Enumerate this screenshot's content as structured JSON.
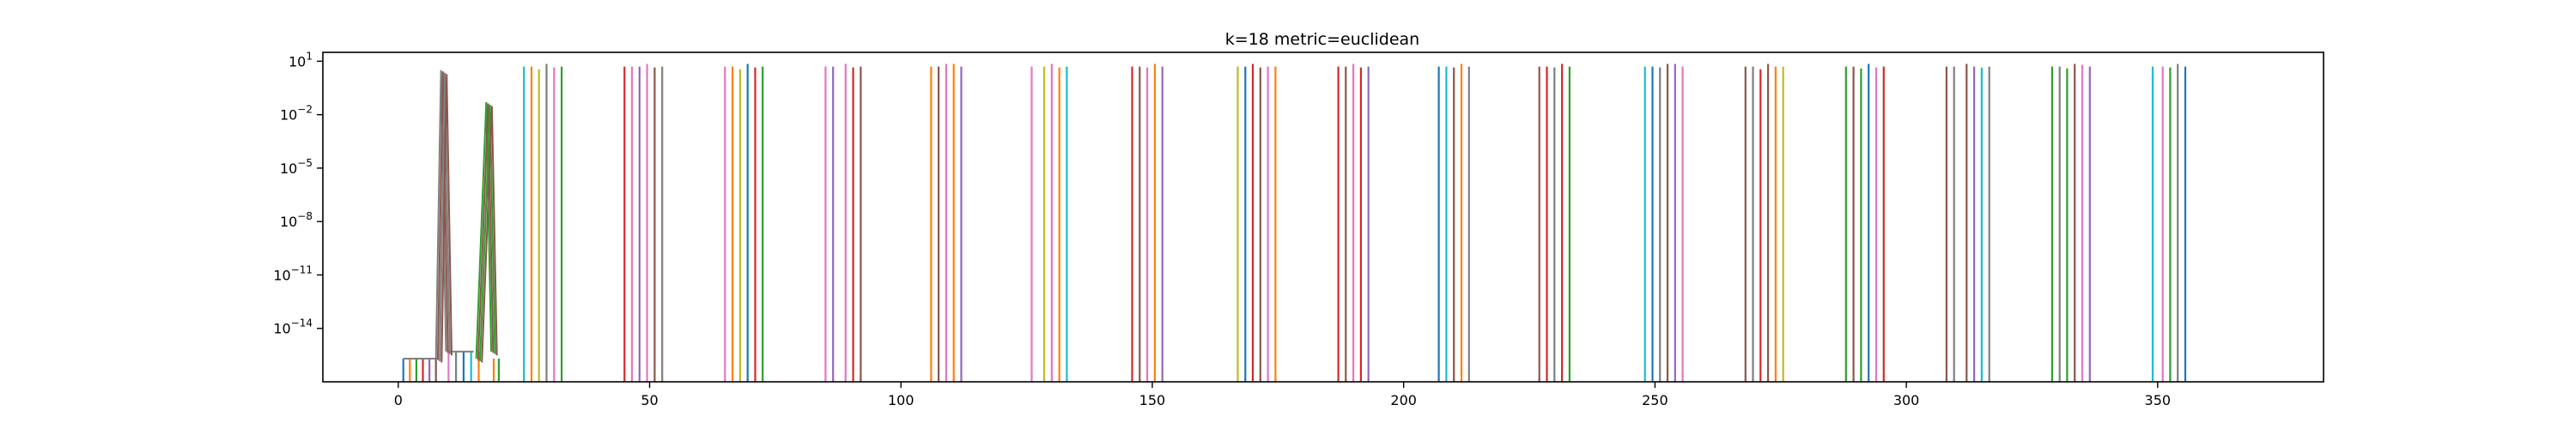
{
  "chart_data": {
    "type": "line",
    "title": "k=18 metric=euclidean",
    "xlabel": "",
    "ylabel": "",
    "xlim": [
      -15,
      383
    ],
    "ylim_log10": [
      -17,
      1.5
    ],
    "yscale": "log",
    "grid": false,
    "legend": "none",
    "x_ticks": [
      0,
      50,
      100,
      150,
      200,
      250,
      300,
      350
    ],
    "x_tick_labels": [
      "0",
      "50",
      "100",
      "150",
      "200",
      "250",
      "300",
      "350"
    ],
    "y_ticks_log10": [
      1,
      -2,
      -5,
      -8,
      -11,
      -14
    ],
    "y_tick_labels": [
      "10^1",
      "10^-2",
      "10^-5",
      "10^-8",
      "10^-11",
      "10^-14"
    ],
    "palette": [
      "#1f77b4",
      "#ff7f0e",
      "#2ca02c",
      "#d62728",
      "#9467bd",
      "#8c564b",
      "#e377c2",
      "#7f7f7f",
      "#bcbd22",
      "#17becf"
    ],
    "floor_log10": -17,
    "low_plateau": {
      "x_start": 1,
      "x_end": 8,
      "log10": -15.7
    },
    "mid_plateau": {
      "x_start": 10,
      "x_end": 15,
      "log10": -15.3
    },
    "peaks": [
      {
        "x_start": 7.5,
        "x_peak": 8.5,
        "x_end": 9.5,
        "log10": 0.5,
        "color": "#7f7f7f"
      },
      {
        "x_start": 15.5,
        "x_peak": 17.5,
        "x_end": 18.5,
        "log10": -1.3,
        "color": "#2ca02c"
      }
    ],
    "spike_groups": [
      {
        "x": [
          1,
          2.3,
          3.6,
          4.9,
          6.2,
          7.5
        ],
        "log10": [
          -15.7,
          -15.7,
          -15.7,
          -15.7,
          -15.7,
          -15.7
        ],
        "colors": [
          "#1f77b4",
          "#ff7f0e",
          "#2ca02c",
          "#d62728",
          "#9467bd",
          "#8c564b"
        ]
      },
      {
        "x": [
          10,
          11.5,
          13,
          14.5,
          16
        ],
        "log10": [
          -15.3,
          -15.3,
          -15.3,
          -15.3,
          -15.3
        ],
        "colors": [
          "#e377c2",
          "#7f7f7f",
          "#1f77b4",
          "#17becf",
          "#ff7f0e"
        ]
      },
      {
        "x": [
          19,
          20
        ],
        "log10": [
          -15.7,
          -15.7
        ],
        "colors": [
          "#ff7f0e",
          "#2ca02c"
        ]
      },
      {
        "x": [
          25,
          26.5,
          28,
          29.5,
          31,
          32.5
        ],
        "log10": [
          0.7,
          0.7,
          0.55,
          0.85,
          0.65,
          0.7
        ],
        "colors": [
          "#17becf",
          "#ff7f0e",
          "#bcbd22",
          "#7f7f7f",
          "#e377c2",
          "#2ca02c"
        ]
      },
      {
        "x": [
          45,
          46.5,
          48,
          49.5,
          51,
          52.5
        ],
        "log10": [
          0.7,
          0.7,
          0.7,
          0.85,
          0.65,
          0.7
        ],
        "colors": [
          "#d62728",
          "#e377c2",
          "#9467bd",
          "#e377c2",
          "#8c564b",
          "#7f7f7f"
        ]
      },
      {
        "x": [
          65,
          66.5,
          68,
          69.5,
          71,
          72.5
        ],
        "log10": [
          0.7,
          0.7,
          0.55,
          0.85,
          0.65,
          0.7
        ],
        "colors": [
          "#e377c2",
          "#ff7f0e",
          "#bcbd22",
          "#1f77b4",
          "#d62728",
          "#2ca02c"
        ]
      },
      {
        "x": [
          85,
          86.5,
          89,
          90.5,
          92
        ],
        "log10": [
          0.7,
          0.7,
          0.85,
          0.65,
          0.7
        ],
        "colors": [
          "#e377c2",
          "#9467bd",
          "#e377c2",
          "#d62728",
          "#8c564b"
        ]
      },
      {
        "x": [
          106,
          107.5,
          109,
          110.5,
          112
        ],
        "log10": [
          0.7,
          0.7,
          0.85,
          0.85,
          0.7
        ],
        "colors": [
          "#ff7f0e",
          "#8c564b",
          "#e377c2",
          "#ff7f0e",
          "#9467bd"
        ]
      },
      {
        "x": [
          126,
          128.5,
          130,
          131.5,
          133
        ],
        "log10": [
          0.7,
          0.7,
          0.85,
          0.65,
          0.7
        ],
        "colors": [
          "#e377c2",
          "#bcbd22",
          "#e377c2",
          "#ff7f0e",
          "#17becf"
        ]
      },
      {
        "x": [
          146,
          147.5,
          149,
          150.5,
          152
        ],
        "log10": [
          0.7,
          0.7,
          0.65,
          0.85,
          0.7
        ],
        "colors": [
          "#d62728",
          "#8c564b",
          "#e377c2",
          "#ff7f0e",
          "#9467bd"
        ]
      },
      {
        "x": [
          167,
          168.5,
          170,
          171.5,
          173,
          174.5
        ],
        "log10": [
          0.7,
          0.7,
          0.85,
          0.65,
          0.7,
          0.7
        ],
        "colors": [
          "#bcbd22",
          "#1f77b4",
          "#d62728",
          "#8c564b",
          "#e377c2",
          "#ff7f0e"
        ]
      },
      {
        "x": [
          187,
          188.5,
          190,
          191.5,
          193
        ],
        "log10": [
          0.7,
          0.7,
          0.85,
          0.65,
          0.7
        ],
        "colors": [
          "#d62728",
          "#8c564b",
          "#e377c2",
          "#d62728",
          "#9467bd"
        ]
      },
      {
        "x": [
          207,
          208.5,
          210,
          211.5,
          213
        ],
        "log10": [
          0.7,
          0.7,
          0.65,
          0.85,
          0.7
        ],
        "colors": [
          "#1f77b4",
          "#17becf",
          "#8c564b",
          "#ff7f0e",
          "#7f7f7f"
        ]
      },
      {
        "x": [
          227,
          228.5,
          230,
          231.5,
          233
        ],
        "log10": [
          0.7,
          0.7,
          0.65,
          0.85,
          0.7
        ],
        "colors": [
          "#8c564b",
          "#d62728",
          "#7f7f7f",
          "#d62728",
          "#2ca02c"
        ]
      },
      {
        "x": [
          248,
          249.5,
          251,
          252.5,
          254,
          255.5
        ],
        "log10": [
          0.7,
          0.7,
          0.65,
          0.85,
          0.85,
          0.7
        ],
        "colors": [
          "#17becf",
          "#1f77b4",
          "#7f7f7f",
          "#8c564b",
          "#9467bd",
          "#e377c2"
        ]
      },
      {
        "x": [
          268,
          269.5,
          271,
          272.5,
          274,
          275.5
        ],
        "log10": [
          0.7,
          0.7,
          0.55,
          0.85,
          0.7,
          0.7
        ],
        "colors": [
          "#8c564b",
          "#7f7f7f",
          "#d62728",
          "#8c564b",
          "#ff7f0e",
          "#bcbd22"
        ]
      },
      {
        "x": [
          288,
          289.5,
          291,
          292.5,
          294,
          295.5
        ],
        "log10": [
          0.7,
          0.7,
          0.6,
          0.85,
          0.65,
          0.7
        ],
        "colors": [
          "#2ca02c",
          "#8c564b",
          "#2ca02c",
          "#1f77b4",
          "#e377c2",
          "#d62728"
        ]
      },
      {
        "x": [
          308,
          309.5,
          312,
          313.5,
          315,
          316.5
        ],
        "log10": [
          0.7,
          0.7,
          0.85,
          0.7,
          0.65,
          0.7
        ],
        "colors": [
          "#8c564b",
          "#7f7f7f",
          "#8c564b",
          "#9467bd",
          "#17becf",
          "#7f7f7f"
        ]
      },
      {
        "x": [
          329,
          330.5,
          332,
          333.5,
          335,
          336.5
        ],
        "log10": [
          0.7,
          0.7,
          0.6,
          0.85,
          0.8,
          0.7
        ],
        "colors": [
          "#2ca02c",
          "#7f7f7f",
          "#2ca02c",
          "#8c564b",
          "#e377c2",
          "#9467bd"
        ]
      },
      {
        "x": [
          349,
          351,
          352.5,
          354,
          355.5
        ],
        "log10": [
          0.7,
          0.7,
          0.65,
          0.85,
          0.7
        ],
        "colors": [
          "#17becf",
          "#e377c2",
          "#2ca02c",
          "#7f7f7f",
          "#1f77b4"
        ]
      }
    ]
  }
}
